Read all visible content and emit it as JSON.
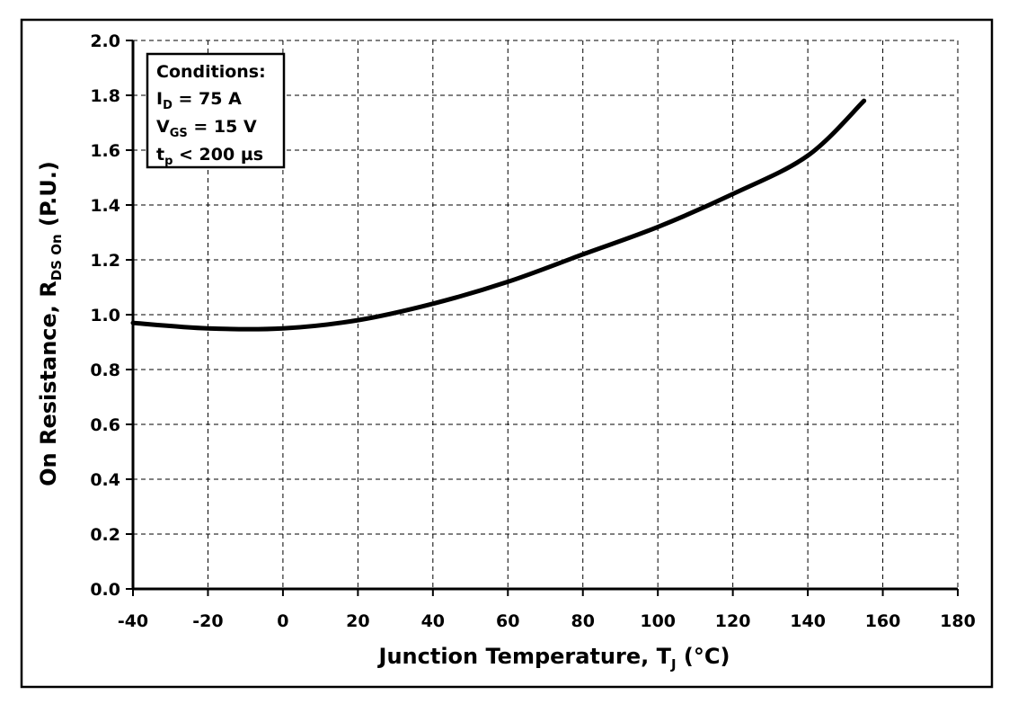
{
  "chart_data": {
    "type": "line",
    "title": "",
    "xlabel": "Junction Temperature, T",
    "xlabel_sub": "J",
    "xlabel_unit": " (°C)",
    "ylabel": "On Resistance, R",
    "ylabel_sub": "DS On",
    "ylabel_unit": " (P.U.)",
    "xlim": [
      -40,
      180
    ],
    "ylim": [
      0.0,
      2.0
    ],
    "x_ticks": [
      -40,
      -20,
      0,
      20,
      40,
      60,
      80,
      100,
      120,
      140,
      160,
      180
    ],
    "y_ticks": [
      "0.0",
      "0.2",
      "0.4",
      "0.6",
      "0.8",
      "1.0",
      "1.2",
      "1.4",
      "1.6",
      "1.8",
      "2.0"
    ],
    "grid": true,
    "legend": {
      "placement": "top-left",
      "title": "Conditions:",
      "items": [
        {
          "main": "I",
          "sub": "D",
          "rest": " = 75 A"
        },
        {
          "main": "V",
          "sub": "GS",
          "rest": " = 15 V"
        },
        {
          "main": "t",
          "sub": "p",
          "rest": " < 200 µs"
        }
      ]
    },
    "series": [
      {
        "color": "#000000",
        "x": [
          -40,
          -20,
          0,
          20,
          40,
          60,
          80,
          100,
          120,
          140,
          155
        ],
        "y": [
          0.97,
          0.95,
          0.95,
          0.98,
          1.04,
          1.12,
          1.22,
          1.32,
          1.44,
          1.58,
          1.78
        ]
      }
    ]
  }
}
